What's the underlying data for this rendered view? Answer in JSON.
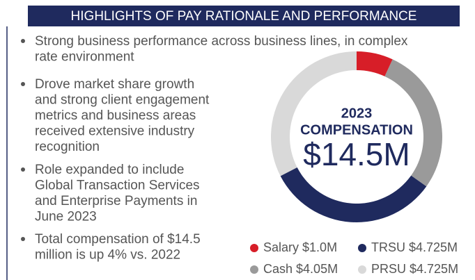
{
  "header": {
    "title": "HIGHLIGHTS OF PAY RATIONALE AND PERFORMANCE"
  },
  "bullets": [
    [
      "Strong business performance across business lines, in complex",
      "rate environment"
    ],
    [
      "Drove market share growth",
      "and strong client engagement",
      "metrics and business areas",
      "received extensive industry",
      "recognition"
    ],
    [
      "Role expanded to include",
      "Global Transaction Services",
      "and Enterprise Payments in",
      "June 2023"
    ],
    [
      "Total compensation of $14.5",
      "million is up 4% vs. 2022"
    ]
  ],
  "chart_data": {
    "type": "pie",
    "donut": true,
    "annotations": [
      "2023",
      "COMPENSATION",
      "$14.5M"
    ],
    "categories": [
      "Salary",
      "Cash",
      "TRSU",
      "PRSU"
    ],
    "values": [
      1.0,
      4.05,
      4.725,
      4.725
    ],
    "value_labels": [
      "$1.0M",
      "$4.05M",
      "$4.725M",
      "$4.725M"
    ],
    "colors": [
      "#d71e28",
      "#9a9a9a",
      "#1f2a5e",
      "#d9d9d9"
    ]
  }
}
